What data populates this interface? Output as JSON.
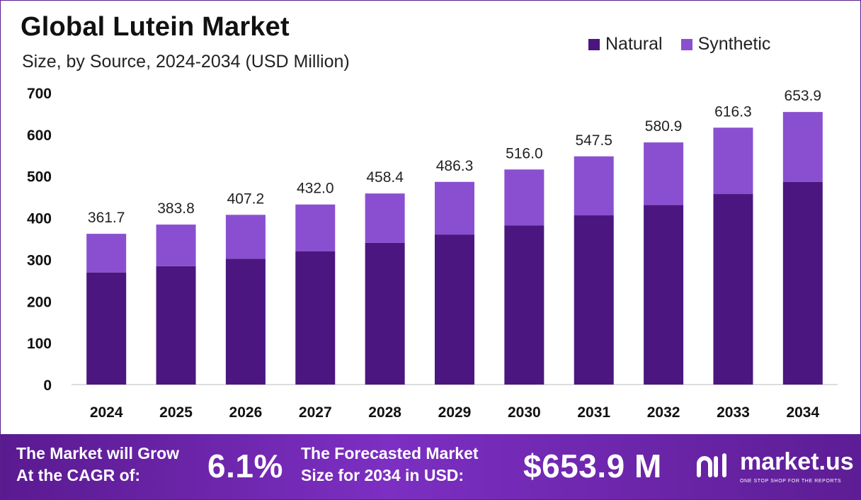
{
  "header": {
    "title": "Global Lutein Market",
    "subtitle": "Size, by Source, 2024-2034 (USD Million)"
  },
  "legend": {
    "items": [
      {
        "label": "Natural",
        "color": "#4b167f"
      },
      {
        "label": "Synthetic",
        "color": "#8a4fd1"
      }
    ]
  },
  "chart_data": {
    "type": "bar",
    "stacked": true,
    "categories": [
      "2024",
      "2025",
      "2026",
      "2027",
      "2028",
      "2029",
      "2030",
      "2031",
      "2032",
      "2033",
      "2034"
    ],
    "series": [
      {
        "name": "Natural",
        "values": [
          269,
          284,
          302,
          320,
          340,
          360,
          382,
          406,
          431,
          457,
          486
        ],
        "color": "#4b167f"
      },
      {
        "name": "Synthetic",
        "values": [
          92.7,
          99.8,
          105.2,
          112.0,
          118.4,
          126.3,
          134.0,
          141.5,
          149.9,
          159.3,
          167.9
        ],
        "color": "#8a4fd1"
      }
    ],
    "totals": [
      361.7,
      383.8,
      407.2,
      432.0,
      458.4,
      486.3,
      516.0,
      547.5,
      580.9,
      616.3,
      653.9
    ],
    "total_labels": [
      "361.7",
      "383.8",
      "407.2",
      "432.0",
      "458.4",
      "486.3",
      "516.0",
      "547.5",
      "580.9",
      "616.3",
      "653.9"
    ],
    "yticks": [
      0,
      100,
      200,
      300,
      400,
      500,
      600,
      700
    ],
    "ytick_labels": [
      "0",
      "100",
      "200",
      "300",
      "400",
      "500",
      "600",
      "700"
    ],
    "ylim": [
      0,
      700
    ],
    "grid": false,
    "legend_position": "top-right"
  },
  "footer": {
    "cagr_label_line1": "The Market will Grow",
    "cagr_label_line2": "At the CAGR of:",
    "cagr_value": "6.1%",
    "forecast_label_line1": "The Forecasted Market",
    "forecast_label_line2": "Size for 2034 in USD:",
    "forecast_value": "$653.9 M",
    "brand_name": "market.us",
    "brand_tagline": "ONE STOP SHOP FOR THE REPORTS"
  }
}
